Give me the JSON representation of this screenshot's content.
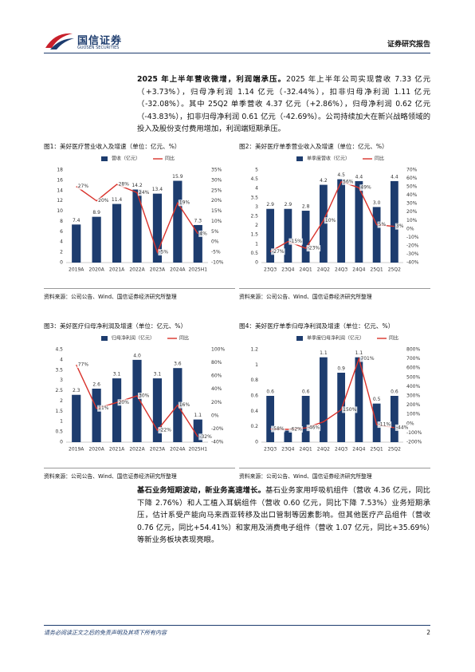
{
  "header": {
    "logo_cn": "国信证券",
    "logo_en": "GUOSEN SECURITIES",
    "report_type": "证券研究报告"
  },
  "paragraphs": [
    {
      "lead": "2025 年上半年营收微增，利润端承压。",
      "body": "2025 年上半年公司实现营收 7.33 亿元（+3.73%），归母净利润 1.14 亿元（-32.44%），扣非归母净利润 1.11 亿元（-32.08%）。其中 25Q2 单季营收 4.37 亿元（+2.86%），归母净利润 0.62 亿元（-43.83%），扣非归母净利润 0.61 亿元（-42.69%）。公司持续加大在新兴战略领域的投入及股份支付费用增加，利润端短期承压。"
    },
    {
      "lead": "基石业务短期波动，新业务高速增长。",
      "body": "基石业务家用呼吸机组件（营收 4.36 亿元，同比下降 2.76%）和人工植入耳蜗组件（营收 0.60 亿元，同比下降 7.53%）业务短期承压，估计系受产能向马来西亚转移及出口管制等因素影响。但其他医疗产品组件（营收 0.76 亿元，同比+54.41%）和家用及消费电子组件（营收 1.07 亿元，同比+35.69%）等新业务板块表现亮眼。"
    }
  ],
  "chart_data": [
    {
      "type": "bar",
      "title": "图1：美好医疗营业收入及增速（单位：亿元、%）",
      "source": "资料来源：公司公告、Wind、国信证券经济研究所整理",
      "categories": [
        "2019A",
        "2020A",
        "2021A",
        "2022A",
        "2023A",
        "2024A",
        "2025H1"
      ],
      "series": [
        {
          "name": "营收（亿元）",
          "color": "#1d3c6e",
          "values": [
            7.4,
            8.9,
            11.4,
            14.2,
            13.4,
            15.9,
            7.3
          ],
          "value_labels": [
            "7.4",
            "8.9",
            "11.4",
            "14.2",
            "13.4",
            "15.9",
            "7.3"
          ]
        },
        {
          "name": "同比",
          "type": "line",
          "axis": "y2",
          "color": "#d9322b",
          "values": [
            27,
            20,
            28,
            24,
            -5,
            19,
            4
          ],
          "value_labels": [
            "27%",
            "20%",
            "28%",
            "24%",
            "-5%",
            "19%",
            "4%"
          ]
        }
      ],
      "ylim": [
        0,
        18
      ],
      "yticks": [
        0,
        2,
        4,
        6,
        8,
        10,
        12,
        14,
        16,
        18
      ],
      "y2lim": [
        -10,
        35
      ],
      "y2ticks": [
        {
          "value": -10,
          "label": "-10%"
        },
        {
          "value": -5,
          "label": "-5%"
        },
        {
          "value": 0,
          "label": "0%"
        },
        {
          "value": 5,
          "label": "5%"
        },
        {
          "value": 10,
          "label": "10%"
        },
        {
          "value": 15,
          "label": "15%"
        },
        {
          "value": 20,
          "label": "20%"
        },
        {
          "value": 25,
          "label": "25%"
        },
        {
          "value": 30,
          "label": "30%"
        },
        {
          "value": 35,
          "label": "35%"
        }
      ]
    },
    {
      "type": "bar",
      "title": "图2：美好医疗单季营业收入及增速（单位：亿元、%）",
      "source": "资料来源：公司公告、Wind、国信证券经济研究所整理",
      "categories": [
        "23Q3",
        "23Q4",
        "24Q1",
        "24Q2",
        "24Q3",
        "24Q4",
        "25Q1",
        "25Q2"
      ],
      "series": [
        {
          "name": "单季度营收（亿元）",
          "color": "#1d3c6e",
          "values": [
            2.9,
            2.9,
            2.8,
            4.2,
            4.5,
            4.4,
            3.0,
            4.4
          ],
          "value_labels": [
            "2.9",
            "2.9",
            "2.8",
            "4.2",
            "4.5",
            "4.4",
            "3.0",
            "4.4"
          ]
        },
        {
          "name": "同比",
          "type": "line",
          "axis": "y2",
          "color": "#d9322b",
          "values": [
            -27,
            -15,
            -23,
            10,
            56,
            49,
            5,
            3
          ],
          "value_labels": [
            "-27%",
            "-15%",
            "-23%",
            "10%",
            "56%",
            "49%",
            "5%",
            "3%"
          ]
        }
      ],
      "ylim": [
        0,
        5
      ],
      "yticks": [
        0,
        0.5,
        1,
        1.5,
        2,
        2.5,
        3,
        3.5,
        4,
        4.5,
        5
      ],
      "y2lim": [
        -40,
        70
      ],
      "y2ticks": [
        {
          "value": -40,
          "label": "-40%"
        },
        {
          "value": -30,
          "label": "-30%"
        },
        {
          "value": -20,
          "label": "-20%"
        },
        {
          "value": -10,
          "label": "-10%"
        },
        {
          "value": 0,
          "label": "0%"
        },
        {
          "value": 10,
          "label": "10%"
        },
        {
          "value": 20,
          "label": "20%"
        },
        {
          "value": 30,
          "label": "30%"
        },
        {
          "value": 40,
          "label": "40%"
        },
        {
          "value": 50,
          "label": "50%"
        },
        {
          "value": 60,
          "label": "60%"
        },
        {
          "value": 70,
          "label": "70%"
        }
      ]
    },
    {
      "type": "bar",
      "title": "图3：美好医疗归母净利润及增速（单位：亿元、%）",
      "source": "资料来源：公司公告、Wind、国信证券经济研究所整理",
      "categories": [
        "2019A",
        "2020A",
        "2021A",
        "2022A",
        "2023A",
        "2024A",
        "2025H1"
      ],
      "series": [
        {
          "name": "归母净利润（亿元）",
          "color": "#1d3c6e",
          "values": [
            2.3,
            2.6,
            3.1,
            4.0,
            3.1,
            3.6,
            1.1
          ],
          "value_labels": [
            "2.3",
            "2.6",
            "3.1",
            "4.0",
            "3.1",
            "3.6",
            "1.1"
          ]
        },
        {
          "name": "同比",
          "type": "line",
          "axis": "y2",
          "color": "#d9322b",
          "values": [
            77,
            11,
            20,
            30,
            -22,
            16,
            -32
          ],
          "value_labels": [
            "77%",
            "11%",
            "20%",
            "30%",
            "-22%",
            "16%",
            "-32%"
          ]
        }
      ],
      "ylim": [
        0,
        4.5
      ],
      "yticks": [
        0,
        0.5,
        1,
        1.5,
        2,
        2.5,
        3,
        3.5,
        4,
        4.5
      ],
      "y2lim": [
        -40,
        100
      ],
      "y2ticks": [
        {
          "value": -40,
          "label": "-40%"
        },
        {
          "value": -20,
          "label": "-20%"
        },
        {
          "value": 0,
          "label": "0%"
        },
        {
          "value": 20,
          "label": "20%"
        },
        {
          "value": 40,
          "label": "40%"
        },
        {
          "value": 60,
          "label": "60%"
        },
        {
          "value": 80,
          "label": "80%"
        },
        {
          "value": 100,
          "label": "100%"
        }
      ]
    },
    {
      "type": "bar",
      "title": "图4：美好医疗单季归母净利润及增速（单位：亿元、%）",
      "source": "资料来源：公司公告、Wind、国信证券经济研究所整理",
      "categories": [
        "23Q3",
        "23Q4",
        "24Q1",
        "24Q2",
        "24Q3",
        "24Q4",
        "25Q1",
        "25Q2"
      ],
      "series": [
        {
          "name": "单季度归母净利润（亿元）",
          "color": "#1d3c6e",
          "values": [
            0.6,
            0.15,
            0.6,
            1.1,
            0.9,
            1.1,
            0.5,
            0.6
          ],
          "value_labels": [
            "0.6",
            null,
            "0.6",
            "1.1",
            "0.9",
            "1.1",
            "0.5",
            "0.6"
          ]
        },
        {
          "name": "同比",
          "type": "line",
          "axis": "y2",
          "color": "#d9322b",
          "values": [
            -58,
            -62,
            -46,
            20,
            150,
            701,
            -11,
            -44
          ],
          "value_labels": [
            "-58%",
            "-62%",
            "-46%",
            null,
            "150%",
            "701%",
            "-11%",
            "-44%"
          ]
        }
      ],
      "ylim": [
        0,
        1.2
      ],
      "yticks": [
        0,
        0.2,
        0.4,
        0.6,
        0.8,
        1,
        1.2
      ],
      "y2lim": [
        -200,
        800
      ],
      "y2ticks": [
        {
          "value": -200,
          "label": "-200%"
        },
        {
          "value": -100,
          "label": "-100%"
        },
        {
          "value": 0,
          "label": "0%"
        },
        {
          "value": 100,
          "label": "100%"
        },
        {
          "value": 200,
          "label": "200%"
        },
        {
          "value": 300,
          "label": "300%"
        },
        {
          "value": 400,
          "label": "400%"
        },
        {
          "value": 500,
          "label": "500%"
        },
        {
          "value": 600,
          "label": "600%"
        },
        {
          "value": 700,
          "label": "700%"
        },
        {
          "value": 800,
          "label": "800%"
        }
      ]
    }
  ],
  "footer": {
    "disclaimer": "请务必阅读正文之后的免责声明及其项下所有内容",
    "page": 2
  }
}
